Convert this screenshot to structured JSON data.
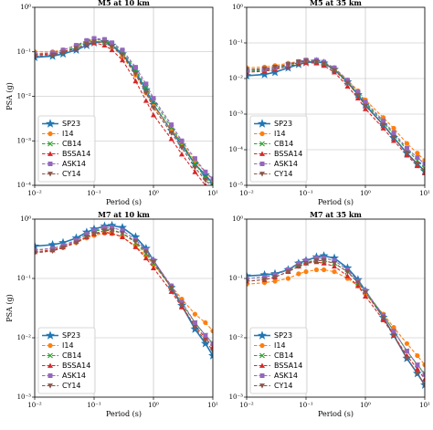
{
  "chart_data": [
    {
      "type": "line",
      "title": "M5 at 10 km",
      "xlabel": "Period (s)",
      "ylabel": "PSA (g)",
      "xscale": "log",
      "yscale": "log",
      "grid": true,
      "legend": "lower left",
      "xlim": [
        0.01,
        10
      ],
      "xticks": [
        {
          "value": 0.01,
          "label": "10⁻²"
        },
        {
          "value": 0.1,
          "label": "10⁻¹"
        },
        {
          "value": 1,
          "label": "10⁰"
        },
        {
          "value": 10,
          "label": "10¹"
        }
      ],
      "ylim": [
        0.0001,
        1
      ],
      "yticks": [
        {
          "value": 0.0001,
          "label": "10⁻⁴"
        },
        {
          "value": 0.001,
          "label": "10⁻³"
        },
        {
          "value": 0.01,
          "label": "10⁻²"
        },
        {
          "value": 0.1,
          "label": "10⁻¹"
        },
        {
          "value": 1,
          "label": "10⁰"
        }
      ],
      "x": [
        0.01,
        0.02,
        0.03,
        0.05,
        0.075,
        0.1,
        0.15,
        0.2,
        0.3,
        0.5,
        0.75,
        1,
        2,
        3,
        5,
        7.5,
        10
      ],
      "series": [
        {
          "name": "SP23",
          "color": "#1f77b4",
          "marker": "star",
          "linestyle": "solid",
          "values": [
            0.075,
            0.08,
            0.09,
            0.11,
            0.14,
            0.16,
            0.17,
            0.14,
            0.09,
            0.035,
            0.014,
            0.0065,
            0.0017,
            0.0008,
            0.0003,
            0.00017,
            0.00011
          ]
        },
        {
          "name": "I14",
          "color": "#ff7f0e",
          "marker": "circle",
          "linestyle": "dashed",
          "values": [
            0.1,
            0.1,
            0.11,
            0.14,
            0.17,
            0.18,
            0.16,
            0.13,
            0.08,
            0.03,
            0.012,
            0.006,
            0.0018,
            0.0009,
            0.00035,
            0.0002,
            0.00013
          ]
        },
        {
          "name": "CB14",
          "color": "#2ca02c",
          "marker": "x",
          "linestyle": "dashed",
          "values": [
            0.09,
            0.09,
            0.1,
            0.13,
            0.17,
            0.19,
            0.18,
            0.15,
            0.1,
            0.04,
            0.016,
            0.008,
            0.002,
            0.0009,
            0.0003,
            0.00015,
            0.0001
          ]
        },
        {
          "name": "BSSA14",
          "color": "#d62728",
          "marker": "triangle",
          "linestyle": "dashed",
          "values": [
            0.085,
            0.09,
            0.1,
            0.12,
            0.15,
            0.16,
            0.14,
            0.11,
            0.065,
            0.022,
            0.008,
            0.0038,
            0.0011,
            0.0005,
            0.0002,
            0.0001,
            7e-05
          ]
        },
        {
          "name": "ASK14",
          "color": "#9467bd",
          "marker": "square",
          "linestyle": "dashed",
          "values": [
            0.09,
            0.095,
            0.11,
            0.14,
            0.18,
            0.2,
            0.19,
            0.16,
            0.11,
            0.045,
            0.019,
            0.009,
            0.0023,
            0.001,
            0.0004,
            0.0002,
            0.00014
          ]
        },
        {
          "name": "CY14",
          "color": "#8c564b",
          "marker": "triangle-down",
          "linestyle": "dashed",
          "values": [
            0.08,
            0.085,
            0.095,
            0.12,
            0.15,
            0.17,
            0.16,
            0.13,
            0.085,
            0.032,
            0.012,
            0.0055,
            0.0015,
            0.0007,
            0.00025,
            0.00013,
            9e-05
          ]
        }
      ]
    },
    {
      "type": "line",
      "title": "M5 at 35 km",
      "xlabel": "Period (s)",
      "xscale": "log",
      "yscale": "log",
      "grid": true,
      "legend": "lower left",
      "xlim": [
        0.01,
        10
      ],
      "xticks": [
        {
          "value": 0.01,
          "label": "10⁻²"
        },
        {
          "value": 0.1,
          "label": "10⁻¹"
        },
        {
          "value": 1,
          "label": "10⁰"
        },
        {
          "value": 10,
          "label": "10¹"
        }
      ],
      "ylim": [
        1e-05,
        1
      ],
      "yticks": [
        {
          "value": 1e-05,
          "label": "10⁻⁵"
        },
        {
          "value": 0.0001,
          "label": "10⁻⁴"
        },
        {
          "value": 0.001,
          "label": "10⁻³"
        },
        {
          "value": 0.01,
          "label": "10⁻²"
        },
        {
          "value": 0.1,
          "label": "10⁻¹"
        },
        {
          "value": 1,
          "label": "10⁰"
        }
      ],
      "x": [
        0.01,
        0.02,
        0.03,
        0.05,
        0.075,
        0.1,
        0.15,
        0.2,
        0.3,
        0.5,
        0.75,
        1,
        2,
        3,
        5,
        7.5,
        10
      ],
      "series": [
        {
          "name": "SP23",
          "color": "#1f77b4",
          "marker": "star",
          "linestyle": "solid",
          "values": [
            0.012,
            0.013,
            0.015,
            0.02,
            0.025,
            0.028,
            0.03,
            0.027,
            0.018,
            0.008,
            0.0035,
            0.0018,
            0.0005,
            0.00022,
            8e-05,
            4e-05,
            2.5e-05
          ]
        },
        {
          "name": "I14",
          "color": "#ff7f0e",
          "marker": "circle",
          "linestyle": "dashed",
          "values": [
            0.02,
            0.021,
            0.023,
            0.027,
            0.03,
            0.032,
            0.031,
            0.027,
            0.019,
            0.009,
            0.0045,
            0.0025,
            0.0008,
            0.0004,
            0.00015,
            8e-05,
            5e-05
          ]
        },
        {
          "name": "CB14",
          "color": "#2ca02c",
          "marker": "x",
          "linestyle": "dashed",
          "values": [
            0.016,
            0.017,
            0.019,
            0.024,
            0.028,
            0.031,
            0.03,
            0.027,
            0.018,
            0.008,
            0.0038,
            0.002,
            0.0006,
            0.00027,
            0.0001,
            5e-05,
            3e-05
          ]
        },
        {
          "name": "BSSA14",
          "color": "#d62728",
          "marker": "triangle",
          "linestyle": "dashed",
          "values": [
            0.015,
            0.016,
            0.018,
            0.022,
            0.026,
            0.028,
            0.027,
            0.023,
            0.015,
            0.006,
            0.0028,
            0.0014,
            0.0004,
            0.00018,
            7e-05,
            3.5e-05,
            2.2e-05
          ]
        },
        {
          "name": "ASK14",
          "color": "#9467bd",
          "marker": "square",
          "linestyle": "dashed",
          "values": [
            0.017,
            0.018,
            0.02,
            0.025,
            0.03,
            0.033,
            0.033,
            0.029,
            0.02,
            0.009,
            0.0042,
            0.0022,
            0.00065,
            0.0003,
            0.00011,
            6e-05,
            4e-05
          ]
        },
        {
          "name": "CY14",
          "color": "#8c564b",
          "marker": "triangle-down",
          "linestyle": "dashed",
          "values": [
            0.018,
            0.019,
            0.021,
            0.025,
            0.029,
            0.031,
            0.03,
            0.026,
            0.017,
            0.0075,
            0.0034,
            0.0017,
            0.0005,
            0.00022,
            8e-05,
            4e-05,
            2.6e-05
          ]
        }
      ]
    },
    {
      "type": "line",
      "title": "M7 at 10 km",
      "xlabel": "Period (s)",
      "ylabel": "PSA (g)",
      "xscale": "log",
      "yscale": "log",
      "grid": true,
      "legend": "lower left",
      "xlim": [
        0.01,
        10
      ],
      "xticks": [
        {
          "value": 0.01,
          "label": "10⁻²"
        },
        {
          "value": 0.1,
          "label": "10⁻¹"
        },
        {
          "value": 1,
          "label": "10⁰"
        },
        {
          "value": 10,
          "label": "10¹"
        }
      ],
      "ylim": [
        0.001,
        1
      ],
      "yticks": [
        {
          "value": 0.001,
          "label": "10⁻³"
        },
        {
          "value": 0.01,
          "label": "10⁻²"
        },
        {
          "value": 0.1,
          "label": "10⁻¹"
        },
        {
          "value": 1,
          "label": "10⁰"
        }
      ],
      "x": [
        0.01,
        0.02,
        0.03,
        0.05,
        0.075,
        0.1,
        0.15,
        0.2,
        0.3,
        0.5,
        0.75,
        1,
        2,
        3,
        5,
        7.5,
        10
      ],
      "series": [
        {
          "name": "SP23",
          "color": "#1f77b4",
          "marker": "star",
          "linestyle": "solid",
          "values": [
            0.35,
            0.37,
            0.4,
            0.48,
            0.6,
            0.68,
            0.76,
            0.78,
            0.72,
            0.5,
            0.32,
            0.2,
            0.07,
            0.035,
            0.014,
            0.008,
            0.005
          ]
        },
        {
          "name": "I14",
          "color": "#ff7f0e",
          "marker": "circle",
          "linestyle": "dashed",
          "values": [
            0.28,
            0.3,
            0.33,
            0.4,
            0.48,
            0.53,
            0.58,
            0.57,
            0.5,
            0.35,
            0.24,
            0.17,
            0.075,
            0.045,
            0.025,
            0.018,
            0.013
          ]
        },
        {
          "name": "CB14",
          "color": "#2ca02c",
          "marker": "x",
          "linestyle": "dashed",
          "values": [
            0.3,
            0.32,
            0.36,
            0.44,
            0.55,
            0.62,
            0.68,
            0.66,
            0.58,
            0.4,
            0.26,
            0.18,
            0.07,
            0.038,
            0.018,
            0.011,
            0.008
          ]
        },
        {
          "name": "BSSA14",
          "color": "#d62728",
          "marker": "triangle",
          "linestyle": "dashed",
          "values": [
            0.28,
            0.3,
            0.34,
            0.42,
            0.5,
            0.56,
            0.6,
            0.58,
            0.5,
            0.34,
            0.22,
            0.15,
            0.06,
            0.033,
            0.016,
            0.01,
            0.007
          ]
        },
        {
          "name": "ASK14",
          "color": "#9467bd",
          "marker": "square",
          "linestyle": "dashed",
          "values": [
            0.3,
            0.32,
            0.36,
            0.44,
            0.56,
            0.64,
            0.72,
            0.72,
            0.64,
            0.45,
            0.3,
            0.2,
            0.075,
            0.04,
            0.018,
            0.011,
            0.008
          ]
        },
        {
          "name": "CY14",
          "color": "#8c564b",
          "marker": "triangle-down",
          "linestyle": "dashed",
          "values": [
            0.27,
            0.29,
            0.33,
            0.4,
            0.5,
            0.57,
            0.64,
            0.64,
            0.58,
            0.42,
            0.28,
            0.19,
            0.07,
            0.036,
            0.015,
            0.009,
            0.006
          ]
        }
      ]
    },
    {
      "type": "line",
      "title": "M7 at 35 km",
      "xlabel": "Period (s)",
      "xscale": "log",
      "yscale": "log",
      "grid": true,
      "legend": "lower left",
      "xlim": [
        0.01,
        10
      ],
      "xticks": [
        {
          "value": 0.01,
          "label": "10⁻²"
        },
        {
          "value": 0.1,
          "label": "10⁻¹"
        },
        {
          "value": 1,
          "label": "10⁰"
        },
        {
          "value": 10,
          "label": "10¹"
        }
      ],
      "ylim": [
        0.001,
        1
      ],
      "yticks": [
        {
          "value": 0.001,
          "label": "10⁻³"
        },
        {
          "value": 0.01,
          "label": "10⁻²"
        },
        {
          "value": 0.1,
          "label": "10⁻¹"
        },
        {
          "value": 1,
          "label": "10⁰"
        }
      ],
      "x": [
        0.01,
        0.02,
        0.03,
        0.05,
        0.075,
        0.1,
        0.15,
        0.2,
        0.3,
        0.5,
        0.75,
        1,
        2,
        3,
        5,
        7.5,
        10
      ],
      "series": [
        {
          "name": "SP23",
          "color": "#1f77b4",
          "marker": "star",
          "linestyle": "solid",
          "values": [
            0.11,
            0.115,
            0.12,
            0.14,
            0.18,
            0.2,
            0.23,
            0.24,
            0.22,
            0.15,
            0.095,
            0.062,
            0.022,
            0.011,
            0.0045,
            0.0025,
            0.0016
          ]
        },
        {
          "name": "I14",
          "color": "#ff7f0e",
          "marker": "circle",
          "linestyle": "dashed",
          "values": [
            0.08,
            0.085,
            0.09,
            0.1,
            0.12,
            0.13,
            0.14,
            0.14,
            0.13,
            0.1,
            0.075,
            0.055,
            0.025,
            0.015,
            0.008,
            0.005,
            0.0035
          ]
        },
        {
          "name": "CB14",
          "color": "#2ca02c",
          "marker": "x",
          "linestyle": "dashed",
          "values": [
            0.1,
            0.105,
            0.115,
            0.14,
            0.17,
            0.19,
            0.2,
            0.2,
            0.18,
            0.13,
            0.085,
            0.06,
            0.024,
            0.013,
            0.006,
            0.0035,
            0.0025
          ]
        },
        {
          "name": "BSSA14",
          "color": "#d62728",
          "marker": "triangle",
          "linestyle": "dashed",
          "values": [
            0.09,
            0.095,
            0.105,
            0.13,
            0.16,
            0.18,
            0.19,
            0.18,
            0.16,
            0.11,
            0.075,
            0.05,
            0.02,
            0.011,
            0.005,
            0.003,
            0.002
          ]
        },
        {
          "name": "ASK14",
          "color": "#9467bd",
          "marker": "square",
          "linestyle": "dashed",
          "values": [
            0.1,
            0.105,
            0.115,
            0.14,
            0.18,
            0.2,
            0.22,
            0.22,
            0.2,
            0.14,
            0.09,
            0.062,
            0.024,
            0.013,
            0.006,
            0.0035,
            0.0024
          ]
        },
        {
          "name": "CY14",
          "color": "#8c564b",
          "marker": "triangle-down",
          "linestyle": "dashed",
          "values": [
            0.09,
            0.095,
            0.105,
            0.13,
            0.16,
            0.18,
            0.2,
            0.2,
            0.18,
            0.13,
            0.085,
            0.058,
            0.022,
            0.011,
            0.0045,
            0.0025,
            0.0016
          ]
        }
      ]
    }
  ]
}
